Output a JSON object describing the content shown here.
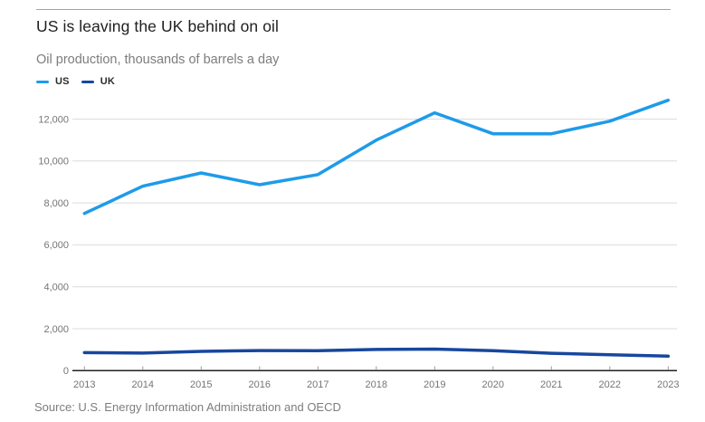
{
  "page": {
    "title": "US is leaving the UK behind on oil",
    "subtitle": "Oil production, thousands of barrels a day",
    "source": "Source: U.S. Energy Information Administration and OECD"
  },
  "colors": {
    "us_line": "#1e9be9",
    "uk_line": "#17479e",
    "grid": "#dcdcdc",
    "axis": "#222222",
    "tick": "#999999",
    "axis_label": "#757575"
  },
  "legend": {
    "items": [
      {
        "label": "US",
        "color_key": "us_line"
      },
      {
        "label": "UK",
        "color_key": "uk_line"
      }
    ]
  },
  "chart_data": {
    "type": "line",
    "title": "US is leaving the UK behind on oil",
    "subtitle": "Oil production, thousands of barrels a day",
    "xlabel": "",
    "ylabel": "Oil production, thousands of barrels a day",
    "categories": [
      "2013",
      "2014",
      "2015",
      "2016",
      "2017",
      "2018",
      "2019",
      "2020",
      "2021",
      "2022",
      "2023"
    ],
    "series": [
      {
        "name": "US",
        "color_key": "us_line",
        "values": [
          7500,
          8800,
          9430,
          8870,
          9350,
          11000,
          12300,
          11300,
          11300,
          11900,
          12900
        ]
      },
      {
        "name": "UK",
        "color_key": "uk_line",
        "values": [
          860,
          840,
          920,
          960,
          950,
          1010,
          1030,
          950,
          830,
          760,
          690
        ]
      }
    ],
    "ylim": [
      0,
      13200
    ],
    "yticks": [
      0,
      2000,
      4000,
      6000,
      8000,
      10000,
      12000
    ],
    "ytick_labels": [
      "0",
      "2,000",
      "4,000",
      "6,000",
      "8,000",
      "10,000",
      "12,000"
    ],
    "grid": "horizontal",
    "legend_position": "top-left",
    "source": "Source: U.S. Energy Information Administration and OECD"
  }
}
